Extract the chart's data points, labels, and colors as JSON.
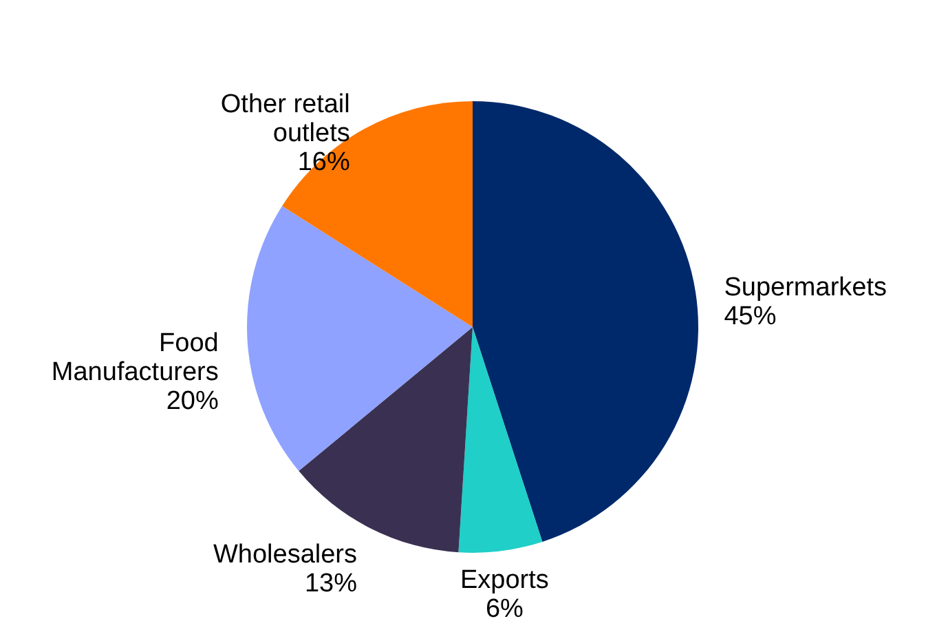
{
  "chart_data": {
    "type": "pie",
    "categories": [
      "Supermarkets",
      "Exports",
      "Wholesalers",
      "Food Manufacturers",
      "Other retail outlets"
    ],
    "values": [
      45,
      6,
      13,
      20,
      16
    ],
    "colors": [
      "#00296b",
      "#1fcfc8",
      "#3a3152",
      "#8fa2ff",
      "#ff7700"
    ],
    "value_labels": [
      "45%",
      "6%",
      "13%",
      "20%",
      "16%"
    ]
  }
}
